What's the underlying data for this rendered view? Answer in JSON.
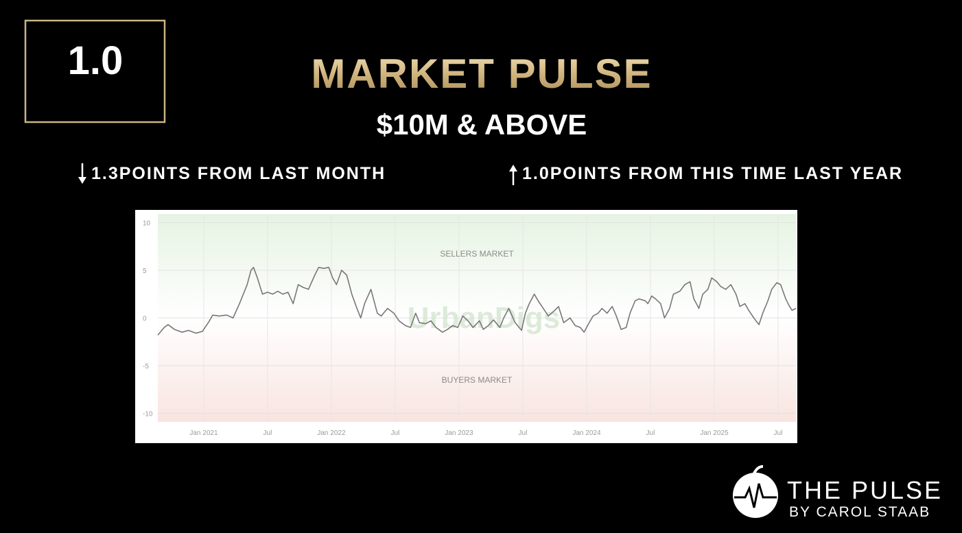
{
  "score": "1.0",
  "title": "MARKET PULSE",
  "subtitle": "$10M & ABOVE",
  "stat_month": "1.3POINTS FROM LAST MONTH",
  "stat_year": "1.0POINTS FROM THIS TIME LAST YEAR",
  "logo": {
    "name": "THE PULSE",
    "byline": "BY CAROL STAAB"
  },
  "chart_data": {
    "type": "line",
    "annotations": [
      "SELLERS MARKET",
      "BUYERS MARKET",
      "UrbanDigs"
    ],
    "color": "#777777",
    "xlim": [
      2020.64,
      2025.64
    ],
    "xticks": [
      {
        "value": 2021,
        "label": "Jan 2021"
      },
      {
        "value": 2021.5,
        "label": "Jul"
      },
      {
        "value": 2022,
        "label": "Jan 2022"
      },
      {
        "value": 2022.5,
        "label": "Jul"
      },
      {
        "value": 2023,
        "label": "Jan 2023"
      },
      {
        "value": 2023.5,
        "label": "Jul"
      },
      {
        "value": 2024,
        "label": "Jan 2024"
      },
      {
        "value": 2024.5,
        "label": "Jul"
      },
      {
        "value": 2025,
        "label": "Jan 2025"
      },
      {
        "value": 2025.5,
        "label": "Jul"
      }
    ],
    "ylim": [
      -10.9,
      10.9
    ],
    "yticks": [
      -10,
      -5,
      0,
      5,
      10
    ],
    "grid": true,
    "x": [
      2020.64,
      2020.69,
      2020.72,
      2020.77,
      2020.83,
      2020.88,
      2020.94,
      2020.99,
      2021.02,
      2021.04,
      2021.07,
      2021.12,
      2021.18,
      2021.23,
      2021.28,
      2021.34,
      2021.37,
      2021.39,
      2021.42,
      2021.46,
      2021.5,
      2021.54,
      2021.58,
      2021.62,
      2021.66,
      2021.7,
      2021.74,
      2021.78,
      2021.82,
      2021.87,
      2021.9,
      2021.94,
      2021.98,
      2022.01,
      2022.04,
      2022.08,
      2022.12,
      2022.16,
      2022.2,
      2022.23,
      2022.26,
      2022.31,
      2022.33,
      2022.36,
      2022.39,
      2022.44,
      2022.49,
      2022.53,
      2022.58,
      2022.62,
      2022.66,
      2022.69,
      2022.74,
      2022.78,
      2022.82,
      2022.87,
      2022.91,
      2022.95,
      2022.99,
      2023.03,
      2023.07,
      2023.11,
      2023.16,
      2023.19,
      2023.23,
      2023.27,
      2023.32,
      2023.35,
      2023.39,
      2023.44,
      2023.49,
      2023.52,
      2023.55,
      2023.59,
      2023.62,
      2023.66,
      2023.7,
      2023.75,
      2023.78,
      2023.82,
      2023.87,
      2023.91,
      2023.95,
      2023.98,
      2024.02,
      2024.05,
      2024.09,
      2024.12,
      2024.16,
      2024.2,
      2024.23,
      2024.27,
      2024.31,
      2024.34,
      2024.38,
      2024.41,
      2024.46,
      2024.48,
      2024.51,
      2024.54,
      2024.58,
      2024.61,
      2024.65,
      2024.68,
      2024.73,
      2024.77,
      2024.81,
      2024.84,
      2024.88,
      2024.91,
      2024.95,
      2024.98,
      2025.02,
      2025.05,
      2025.09,
      2025.13,
      2025.17,
      2025.2,
      2025.24,
      2025.27,
      2025.31,
      2025.35,
      2025.38,
      2025.42,
      2025.45,
      2025.49,
      2025.52,
      2025.56,
      2025.59,
      2025.61,
      2025.64
    ],
    "values": [
      -1.8,
      -1.0,
      -0.7,
      -1.2,
      -1.5,
      -1.3,
      -1.6,
      -1.4,
      -0.8,
      -0.4,
      0.3,
      0.2,
      0.3,
      0.0,
      1.5,
      3.5,
      5.0,
      5.3,
      4.2,
      2.5,
      2.7,
      2.5,
      2.8,
      2.5,
      2.7,
      1.5,
      3.5,
      3.2,
      3.0,
      4.5,
      5.3,
      5.2,
      5.3,
      4.2,
      3.5,
      5.0,
      4.5,
      2.5,
      1.0,
      0.0,
      1.5,
      3.0,
      2.0,
      0.5,
      0.2,
      1.0,
      0.5,
      -0.3,
      -0.8,
      -1.0,
      0.5,
      -0.5,
      -0.6,
      -0.3,
      -1.0,
      -1.5,
      -1.2,
      -0.8,
      -1.0,
      0.2,
      -0.3,
      -1.0,
      -0.3,
      -1.2,
      -0.8,
      -0.2,
      -1.0,
      0.0,
      1.0,
      -0.5,
      -1.3,
      0.5,
      1.5,
      2.5,
      1.8,
      1.0,
      0.2,
      0.8,
      1.2,
      -0.5,
      0.0,
      -0.8,
      -1.0,
      -1.5,
      -0.5,
      0.2,
      0.5,
      1.0,
      0.5,
      1.2,
      0.3,
      -1.2,
      -1.0,
      0.5,
      1.8,
      2.0,
      1.8,
      1.5,
      2.3,
      2.0,
      1.5,
      0.0,
      1.0,
      2.5,
      2.8,
      3.5,
      3.8,
      2.0,
      1.0,
      2.5,
      3.0,
      4.2,
      3.8,
      3.3,
      3.0,
      3.5,
      2.5,
      1.2,
      1.5,
      0.8,
      0.0,
      -0.7,
      0.5,
      1.8,
      3.0,
      3.7,
      3.5,
      2.0,
      1.2,
      0.8,
      1.0
    ]
  }
}
